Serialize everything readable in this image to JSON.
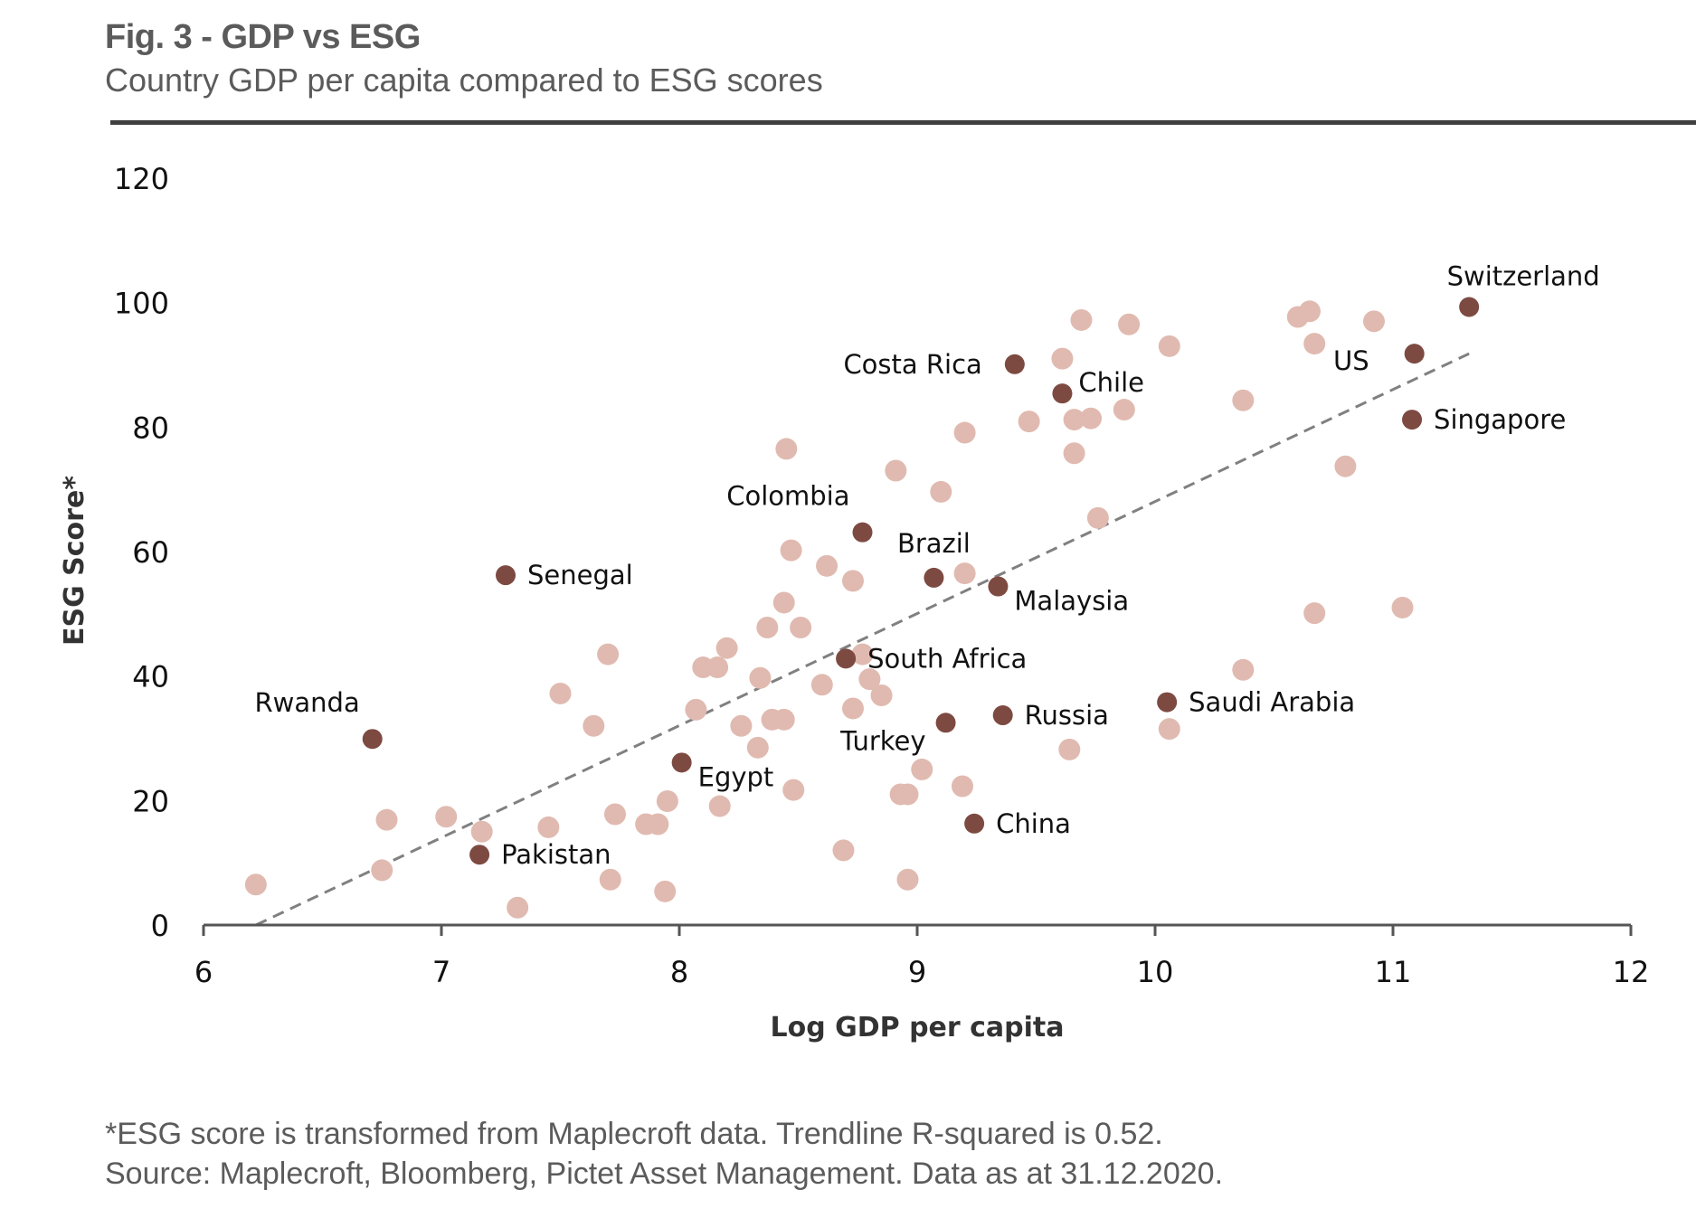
{
  "header": {
    "title": "Fig. 3 - GDP vs ESG",
    "subtitle": "Country GDP per capita compared to ESG scores"
  },
  "footer": {
    "note": "*ESG score is transformed from Maplecroft data. Trendline R-squared is 0.52.",
    "source": "Source: Maplecroft, Bloomberg, Pictet Asset Management. Data as at 31.12.2020."
  },
  "colors": {
    "highlight_point": "#7d4a42",
    "background_point": "#e0bab0",
    "trendline": "#808080",
    "axis": "#555555"
  },
  "chart_data": {
    "type": "scatter",
    "title": "Fig. 3 - GDP vs ESG",
    "subtitle": "Country GDP per capita compared to ESG scores",
    "xlabel": "Log GDP per capita",
    "ylabel": "ESG Score*",
    "xlim": [
      6,
      12
    ],
    "ylim": [
      0,
      120
    ],
    "xticks": [
      "6",
      "7",
      "8",
      "9",
      "10",
      "11",
      "12"
    ],
    "yticks": [
      "0",
      "20",
      "40",
      "60",
      "80",
      "100",
      "120"
    ],
    "grid": false,
    "legend": "none",
    "trendline": {
      "style": "dashed",
      "r_squared": 0.52,
      "start": [
        6.22,
        0
      ],
      "end": [
        11.32,
        91.8
      ]
    },
    "labeled_points": [
      {
        "name": "Switzerland",
        "x": 11.32,
        "y": 99.3,
        "label_pos": "above"
      },
      {
        "name": "US",
        "x": 11.09,
        "y": 91.8,
        "label_pos": "left-below"
      },
      {
        "name": "Singapore",
        "x": 11.08,
        "y": 81.2,
        "label_pos": "right"
      },
      {
        "name": "Costa Rica",
        "x": 9.41,
        "y": 90.1,
        "label_pos": "left"
      },
      {
        "name": "Chile",
        "x": 9.61,
        "y": 85.4,
        "label_pos": "right-above"
      },
      {
        "name": "Colombia",
        "x": 8.77,
        "y": 63.1,
        "label_pos": "left-above"
      },
      {
        "name": "Brazil",
        "x": 9.07,
        "y": 55.8,
        "label_pos": "above"
      },
      {
        "name": "Malaysia",
        "x": 9.34,
        "y": 54.4,
        "label_pos": "right-below"
      },
      {
        "name": "Senegal",
        "x": 7.27,
        "y": 56.2,
        "label_pos": "right"
      },
      {
        "name": "South Africa",
        "x": 8.7,
        "y": 42.8,
        "label_pos": "right"
      },
      {
        "name": "Rwanda",
        "x": 6.71,
        "y": 29.9,
        "label_pos": "left-above"
      },
      {
        "name": "Russia",
        "x": 9.36,
        "y": 33.7,
        "label_pos": "right"
      },
      {
        "name": "Turkey",
        "x": 9.12,
        "y": 32.5,
        "label_pos": "left-below"
      },
      {
        "name": "Saudi Arabia",
        "x": 10.05,
        "y": 35.8,
        "label_pos": "right"
      },
      {
        "name": "Egypt",
        "x": 8.01,
        "y": 26.1,
        "label_pos": "right-below"
      },
      {
        "name": "China",
        "x": 9.24,
        "y": 16.3,
        "label_pos": "right"
      },
      {
        "name": "Pakistan",
        "x": 7.16,
        "y": 11.3,
        "label_pos": "right"
      }
    ],
    "other_points": [
      {
        "x": 6.22,
        "y": 6.5
      },
      {
        "x": 6.77,
        "y": 16.9
      },
      {
        "x": 6.75,
        "y": 8.8
      },
      {
        "x": 7.02,
        "y": 17.4
      },
      {
        "x": 7.17,
        "y": 15.0
      },
      {
        "x": 7.32,
        "y": 2.8
      },
      {
        "x": 7.45,
        "y": 15.7
      },
      {
        "x": 7.5,
        "y": 37.2
      },
      {
        "x": 7.64,
        "y": 32.0
      },
      {
        "x": 7.7,
        "y": 43.5
      },
      {
        "x": 7.71,
        "y": 7.3
      },
      {
        "x": 7.73,
        "y": 17.8
      },
      {
        "x": 7.86,
        "y": 16.2
      },
      {
        "x": 7.91,
        "y": 16.2
      },
      {
        "x": 7.94,
        "y": 5.4
      },
      {
        "x": 7.95,
        "y": 19.9
      },
      {
        "x": 8.07,
        "y": 34.6
      },
      {
        "x": 8.1,
        "y": 41.4
      },
      {
        "x": 8.16,
        "y": 41.4
      },
      {
        "x": 8.17,
        "y": 19.1
      },
      {
        "x": 8.2,
        "y": 44.5
      },
      {
        "x": 8.26,
        "y": 32.0
      },
      {
        "x": 8.33,
        "y": 28.5
      },
      {
        "x": 8.34,
        "y": 39.7
      },
      {
        "x": 8.37,
        "y": 47.8
      },
      {
        "x": 8.39,
        "y": 33.0
      },
      {
        "x": 8.44,
        "y": 33.0
      },
      {
        "x": 8.44,
        "y": 51.8
      },
      {
        "x": 8.45,
        "y": 76.5
      },
      {
        "x": 8.47,
        "y": 60.2
      },
      {
        "x": 8.48,
        "y": 21.7
      },
      {
        "x": 8.51,
        "y": 47.8
      },
      {
        "x": 8.6,
        "y": 38.6
      },
      {
        "x": 8.62,
        "y": 57.7
      },
      {
        "x": 8.69,
        "y": 12.0
      },
      {
        "x": 8.73,
        "y": 55.3
      },
      {
        "x": 8.73,
        "y": 34.8
      },
      {
        "x": 8.77,
        "y": 43.5
      },
      {
        "x": 8.8,
        "y": 39.5
      },
      {
        "x": 8.85,
        "y": 36.9
      },
      {
        "x": 8.91,
        "y": 73.0
      },
      {
        "x": 8.93,
        "y": 21.0
      },
      {
        "x": 8.96,
        "y": 21.0
      },
      {
        "x": 8.96,
        "y": 7.3
      },
      {
        "x": 9.02,
        "y": 25.0
      },
      {
        "x": 9.1,
        "y": 69.6
      },
      {
        "x": 9.19,
        "y": 22.3
      },
      {
        "x": 9.2,
        "y": 56.5
      },
      {
        "x": 9.2,
        "y": 79.1
      },
      {
        "x": 9.47,
        "y": 80.9
      },
      {
        "x": 9.61,
        "y": 91.0
      },
      {
        "x": 9.64,
        "y": 28.2
      },
      {
        "x": 9.66,
        "y": 75.8
      },
      {
        "x": 9.66,
        "y": 81.2
      },
      {
        "x": 9.69,
        "y": 97.2
      },
      {
        "x": 9.73,
        "y": 81.4
      },
      {
        "x": 9.76,
        "y": 65.4
      },
      {
        "x": 9.87,
        "y": 82.8
      },
      {
        "x": 9.89,
        "y": 96.5
      },
      {
        "x": 10.06,
        "y": 93.0
      },
      {
        "x": 10.06,
        "y": 31.5
      },
      {
        "x": 10.37,
        "y": 84.3
      },
      {
        "x": 10.37,
        "y": 41.0
      },
      {
        "x": 10.6,
        "y": 97.7
      },
      {
        "x": 10.65,
        "y": 98.6
      },
      {
        "x": 10.67,
        "y": 93.4
      },
      {
        "x": 10.67,
        "y": 50.1
      },
      {
        "x": 10.8,
        "y": 73.7
      },
      {
        "x": 10.92,
        "y": 97.0
      },
      {
        "x": 11.04,
        "y": 51.0
      }
    ]
  }
}
